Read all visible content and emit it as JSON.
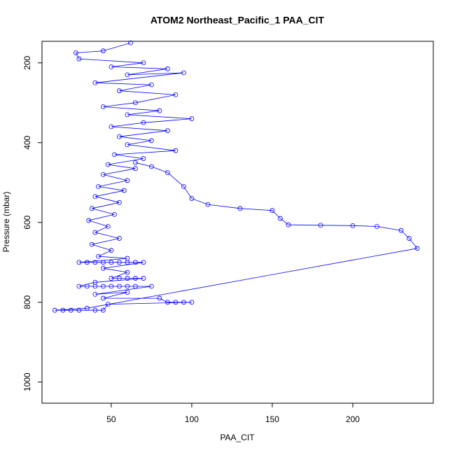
{
  "chart_data": {
    "type": "scatter",
    "connected": true,
    "title": "ATOM2 Northeast_Pacific_1 PAA_CIT",
    "x_label": "PAA_CIT",
    "y_label": "Pressure (mbar)",
    "color": "#0000ff",
    "grid": false,
    "xlim": [
      7,
      250
    ],
    "ylim": [
      1053,
      146
    ],
    "xticks": [
      50,
      100,
      150,
      200
    ],
    "yticks": [
      200,
      400,
      600,
      800,
      1000
    ],
    "x": [
      62,
      45,
      28,
      30,
      70,
      50,
      85,
      60,
      95,
      40,
      75,
      55,
      90,
      65,
      45,
      80,
      60,
      100,
      70,
      50,
      85,
      55,
      75,
      60,
      90,
      52,
      70,
      48,
      65,
      45,
      60,
      42,
      58,
      40,
      55,
      38,
      52,
      36,
      48,
      40,
      55,
      38,
      50,
      42,
      60,
      30,
      35,
      40,
      45,
      50,
      55,
      60,
      65,
      70,
      45,
      60,
      50,
      55,
      60,
      65,
      70,
      40,
      30,
      35,
      40,
      45,
      50,
      55,
      60,
      65,
      75,
      40,
      60,
      45,
      80,
      85,
      90,
      95,
      100,
      48,
      45,
      40,
      30,
      25,
      20,
      15,
      35,
      240,
      235,
      230,
      215,
      200,
      180,
      160,
      155,
      150,
      130,
      110,
      100,
      95,
      85,
      75,
      65
    ],
    "values": [
      150,
      170,
      175,
      190,
      200,
      210,
      215,
      230,
      225,
      250,
      255,
      270,
      280,
      300,
      310,
      320,
      330,
      340,
      350,
      360,
      370,
      385,
      395,
      405,
      420,
      430,
      440,
      455,
      465,
      480,
      495,
      510,
      520,
      535,
      550,
      565,
      580,
      595,
      610,
      625,
      640,
      655,
      670,
      685,
      690,
      700,
      700,
      700,
      700,
      700,
      700,
      700,
      700,
      700,
      715,
      725,
      740,
      740,
      740,
      740,
      740,
      750,
      760,
      760,
      760,
      760,
      760,
      760,
      760,
      760,
      760,
      780,
      775,
      790,
      790,
      800,
      800,
      800,
      800,
      805,
      820,
      820,
      820,
      820,
      820,
      820,
      815,
      665,
      640,
      620,
      610,
      608,
      607,
      606,
      590,
      570,
      565,
      555,
      540,
      510,
      475,
      460,
      450
    ]
  }
}
